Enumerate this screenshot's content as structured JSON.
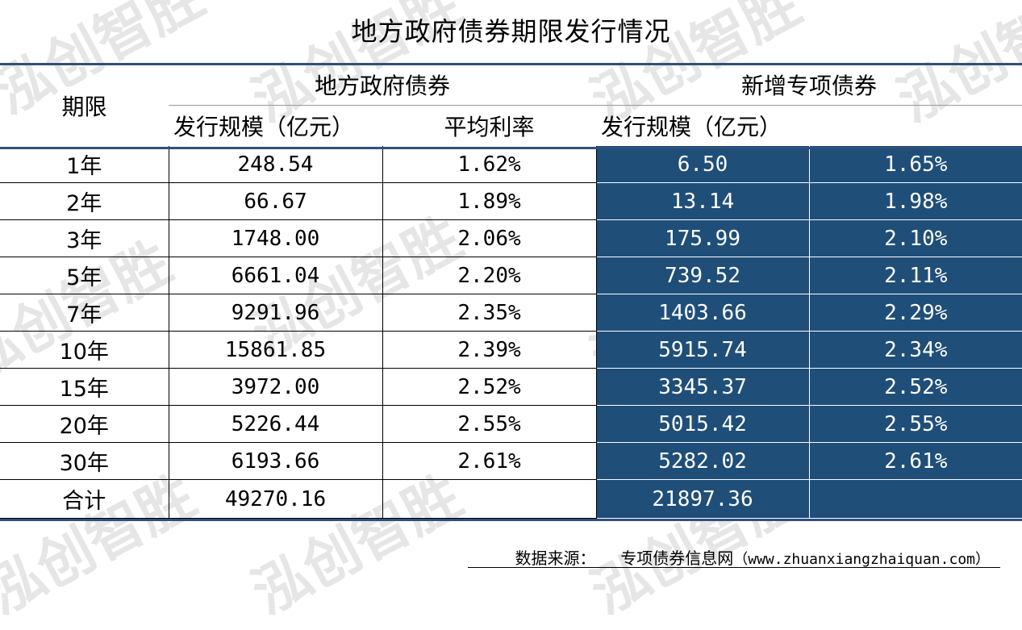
{
  "title": "地方政府债券期限发行情况",
  "watermark_text": "泓创智胜",
  "header": {
    "term_label": "期限",
    "group_local": "地方政府债券",
    "group_special": "新增专项债券",
    "col_scale": "发行规模（亿元）",
    "col_rate": "平均利率",
    "col_scale_special": "发行规模（亿元）"
  },
  "rows": [
    {
      "term": "1年",
      "scale": "248.54",
      "rate": "1.62%",
      "special_scale": "6.50",
      "special_rate": "1.65%"
    },
    {
      "term": "2年",
      "scale": "66.67",
      "rate": "1.89%",
      "special_scale": "13.14",
      "special_rate": "1.98%"
    },
    {
      "term": "3年",
      "scale": "1748.00",
      "rate": "2.06%",
      "special_scale": "175.99",
      "special_rate": "2.10%"
    },
    {
      "term": "5年",
      "scale": "6661.04",
      "rate": "2.20%",
      "special_scale": "739.52",
      "special_rate": "2.11%"
    },
    {
      "term": "7年",
      "scale": "9291.96",
      "rate": "2.35%",
      "special_scale": "1403.66",
      "special_rate": "2.29%"
    },
    {
      "term": "10年",
      "scale": "15861.85",
      "rate": "2.39%",
      "special_scale": "5915.74",
      "special_rate": "2.34%"
    },
    {
      "term": "15年",
      "scale": "3972.00",
      "rate": "2.52%",
      "special_scale": "3345.37",
      "special_rate": "2.52%"
    },
    {
      "term": "20年",
      "scale": "5226.44",
      "rate": "2.55%",
      "special_scale": "5015.42",
      "special_rate": "2.55%"
    },
    {
      "term": "30年",
      "scale": "6193.66",
      "rate": "2.61%",
      "special_scale": "5282.02",
      "special_rate": "2.61%"
    }
  ],
  "total": {
    "term": "合计",
    "scale": "49270.16",
    "rate": "",
    "special_scale": "21897.36",
    "special_rate": ""
  },
  "source": {
    "label": "数据来源：",
    "name": "专项债券信息网",
    "url": "（www.zhuanxiangzhaiquan.com）"
  },
  "colors": {
    "header_rule": "#2f4f7f",
    "special_fill": "#1f4e79",
    "special_text": "#ffffff"
  }
}
